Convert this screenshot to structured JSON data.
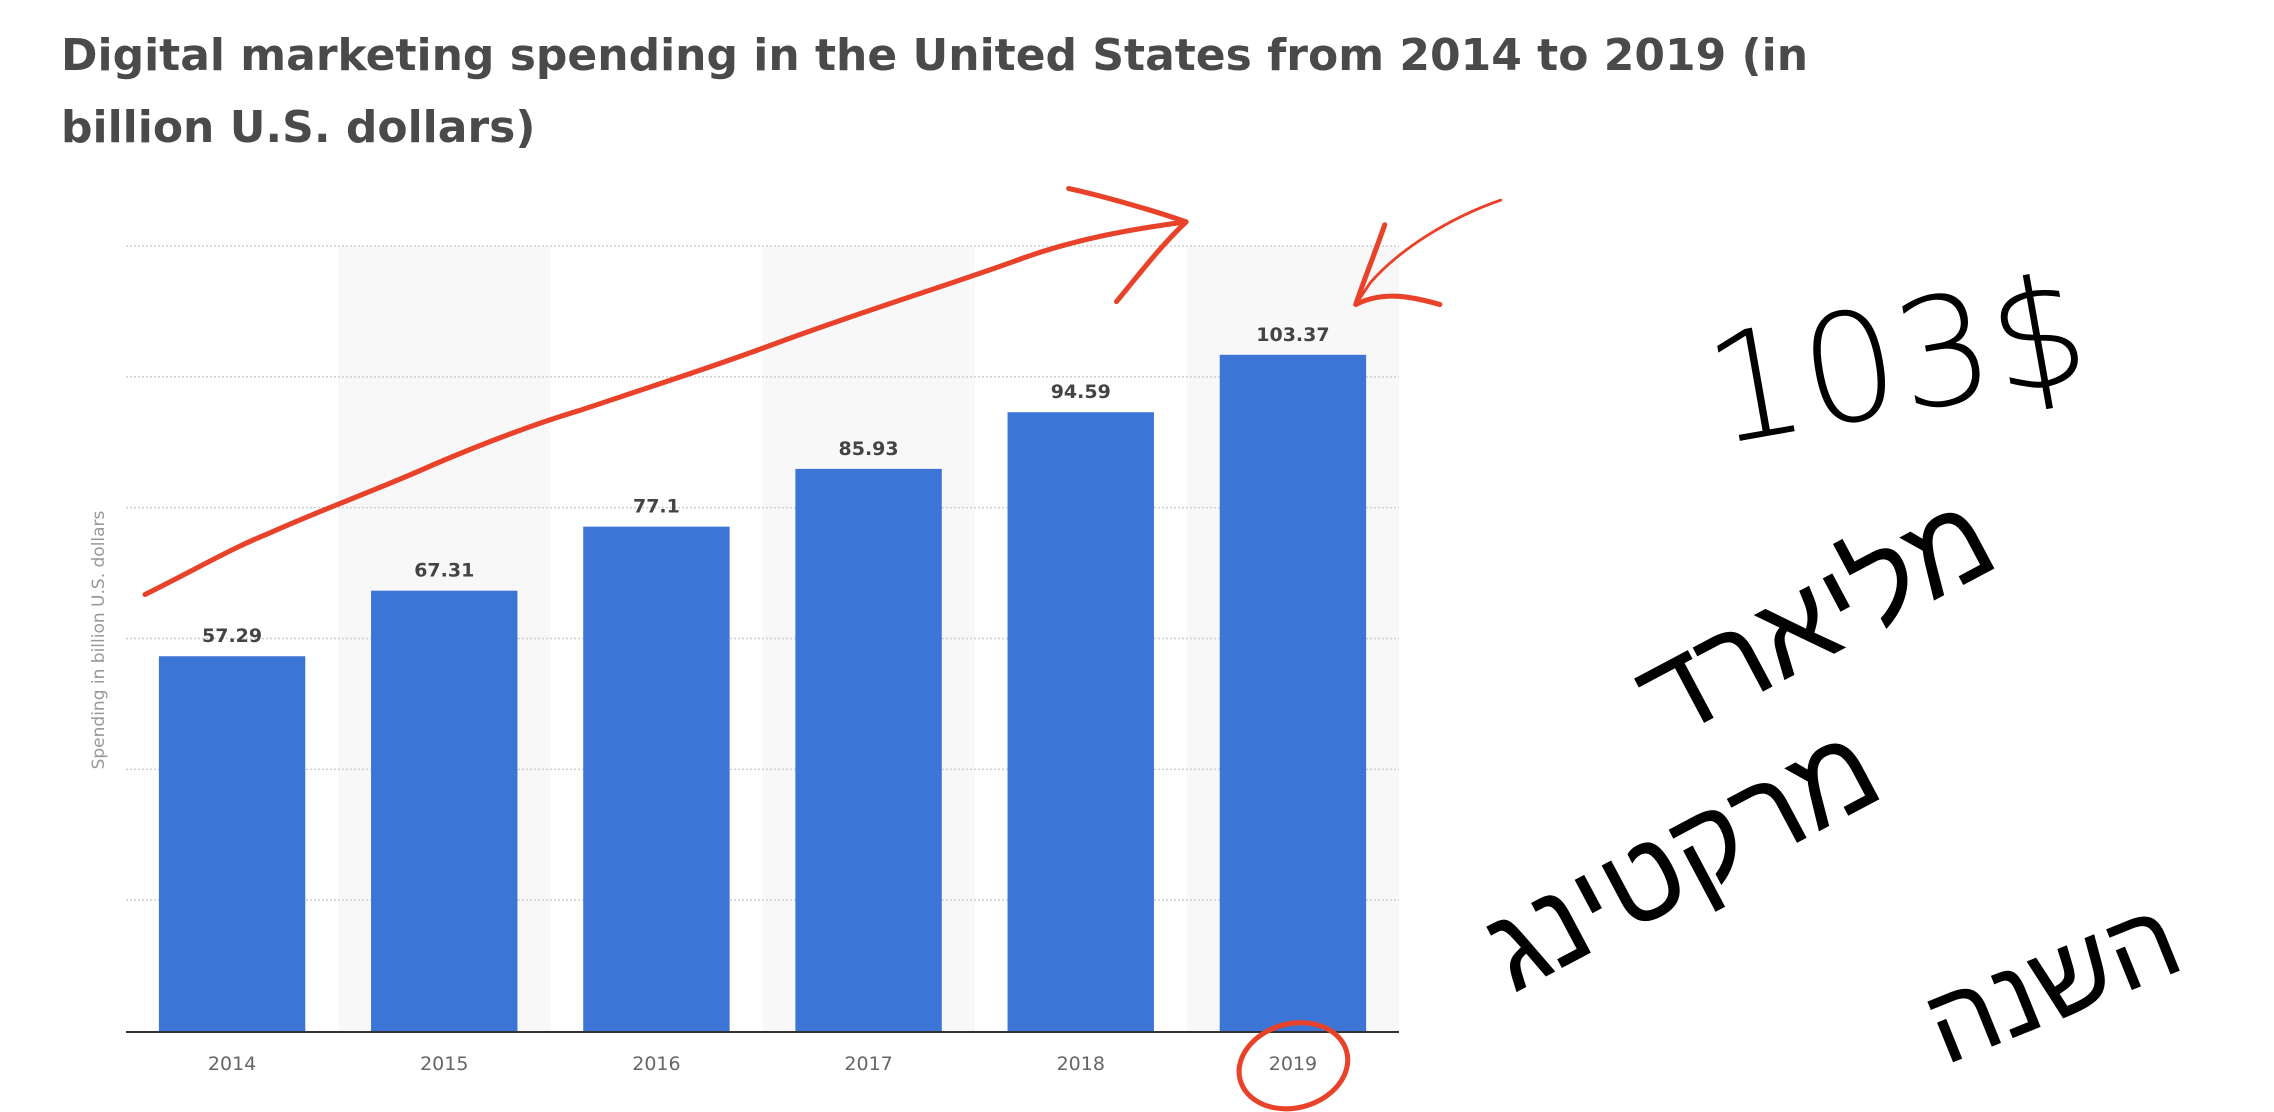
{
  "chart_data": {
    "type": "bar",
    "title": "Digital marketing spending in the United States from 2014 to 2019 (in billion U.S. dollars)",
    "categories": [
      "2014",
      "2015",
      "2016",
      "2017",
      "2018",
      "2019"
    ],
    "values": [
      57.29,
      67.31,
      77.1,
      85.93,
      94.59,
      103.37
    ],
    "value_labels": [
      "57.29",
      "67.31",
      "77.1",
      "85.93",
      "94.59",
      "103.37"
    ],
    "xlabel": "",
    "ylabel": "Spending in billion U.S. dollars",
    "ylim": [
      0,
      120
    ],
    "ygrid_step": 20,
    "grid": true,
    "bar_color": "#3c75d6",
    "alt_column_shading": "#f8f8f8"
  },
  "annotations": {
    "ink_color_red": "#e8432a",
    "ink_color_black": "#000000",
    "handwritten_lines": [
      "103$",
      "מליארד",
      "מרקטינג",
      "השנה"
    ]
  }
}
